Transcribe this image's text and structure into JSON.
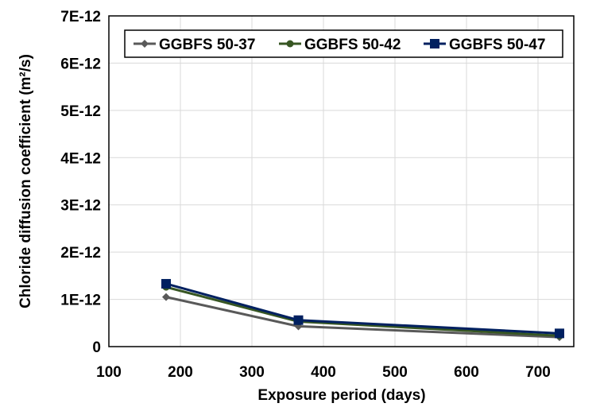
{
  "chart_data": {
    "type": "line",
    "title": "",
    "xlabel": "Exposure period (days)",
    "ylabel": "Chloride diffusion coefficient (m²/s)",
    "xlim": [
      100,
      750
    ],
    "ylim": [
      0,
      7e-12
    ],
    "x_ticks": [
      100,
      200,
      300,
      400,
      500,
      600,
      700
    ],
    "x_tick_labels": [
      "100",
      "200",
      "300",
      "400",
      "500",
      "600",
      "700"
    ],
    "y_ticks": [
      0,
      1e-12,
      2e-12,
      3e-12,
      4e-12,
      5e-12,
      6e-12,
      7e-12
    ],
    "y_tick_labels": [
      "0",
      "1E-12",
      "2E-12",
      "3E-12",
      "4E-12",
      "5E-12",
      "6E-12",
      "7E-12"
    ],
    "grid": true,
    "legend_position": "top",
    "x": [
      180,
      365,
      730
    ],
    "series": [
      {
        "name": "GGBFS 50-37",
        "values": [
          1.05e-12,
          4.3e-13,
          2e-13
        ],
        "color": "#595959",
        "marker": "diamond"
      },
      {
        "name": "GGBFS 50-42",
        "values": [
          1.26e-12,
          5.3e-13,
          2.3e-13
        ],
        "color": "#375623",
        "marker": "circle"
      },
      {
        "name": "GGBFS 50-47",
        "values": [
          1.33e-12,
          5.6e-13,
          2.8e-13
        ],
        "color": "#002060",
        "marker": "square"
      }
    ]
  }
}
